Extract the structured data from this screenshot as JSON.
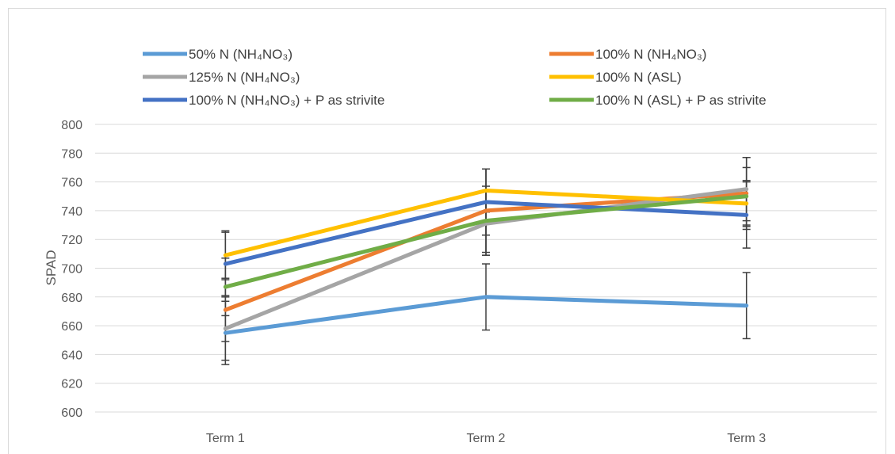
{
  "chart_data": {
    "type": "line",
    "title": "",
    "xlabel": "",
    "ylabel": "SPAD",
    "categories": [
      "Term 1",
      "Term 2",
      "Term 3"
    ],
    "ylim": [
      600,
      800
    ],
    "y_ticks": [
      600,
      620,
      640,
      660,
      680,
      700,
      720,
      740,
      760,
      780,
      800
    ],
    "grid": true,
    "legend_position": "top",
    "series": [
      {
        "name": "50% N (NH₄NO₃)",
        "color": "#5b9bd5",
        "values": [
          655,
          680,
          674
        ],
        "error": [
          22,
          23,
          23
        ]
      },
      {
        "name": "100% N (NH₄NO₃)",
        "color": "#ed7d31",
        "values": [
          671,
          740,
          752
        ],
        "error": [
          22,
          29,
          25
        ]
      },
      {
        "name": "125% N (NH₄NO₃)",
        "color": "#a5a5a5",
        "values": [
          658,
          731,
          755
        ],
        "error": [
          22,
          22,
          22
        ]
      },
      {
        "name": "100% N (ASL)",
        "color": "#ffc000",
        "values": [
          709,
          754,
          745
        ],
        "error": [
          17,
          15,
          16
        ]
      },
      {
        "name": "100% N (NH₄NO₃) + P as strivite",
        "color": "#4472c4",
        "values": [
          703,
          746,
          737
        ],
        "error": [
          22,
          23,
          23
        ]
      },
      {
        "name": "100% N (ASL) + P as strivite",
        "color": "#70ad47",
        "values": [
          687,
          733,
          750
        ],
        "error": [
          20,
          24,
          20
        ]
      }
    ]
  }
}
